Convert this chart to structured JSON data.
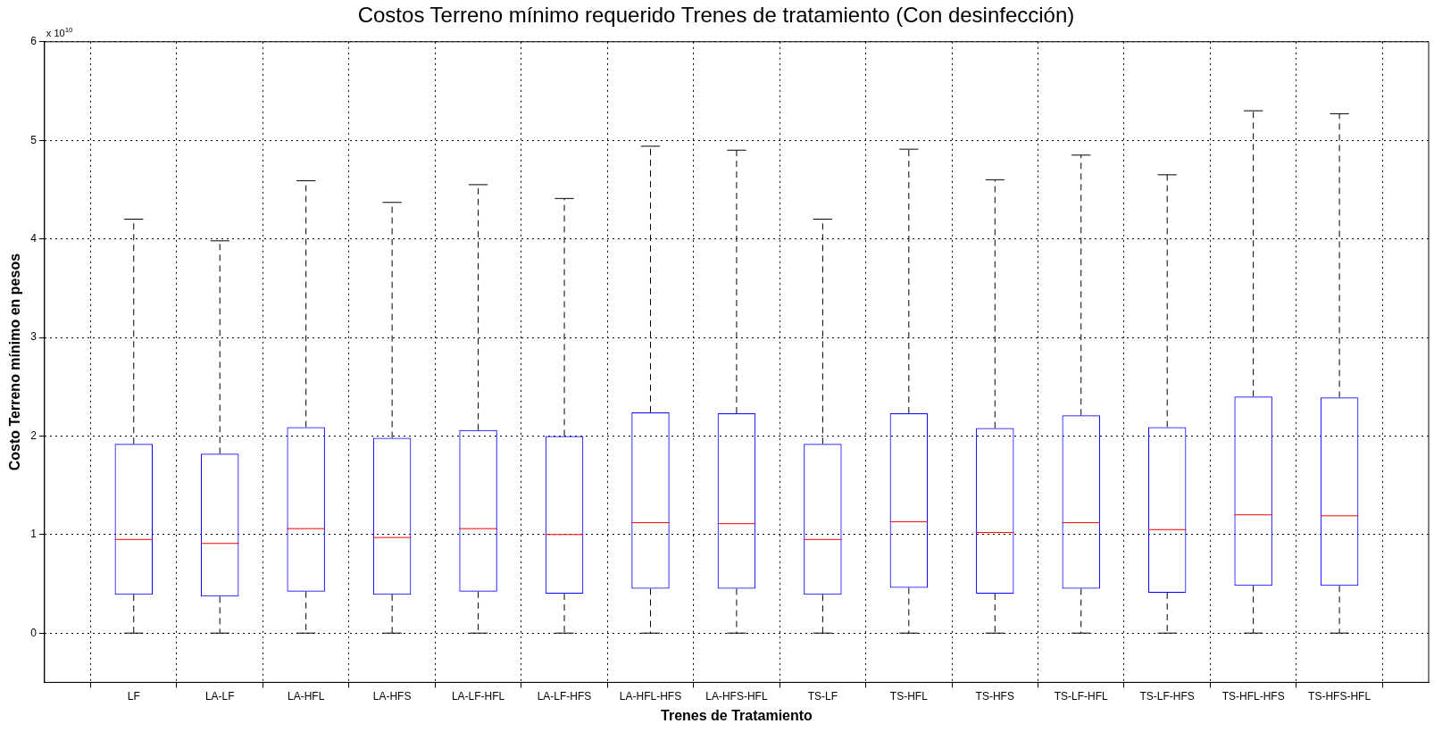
{
  "chart_data": {
    "type": "box",
    "title": "Costos Terreno mínimo requerido Trenes de tratamiento (Con desinfección)",
    "xlabel": "Trenes de Tratamiento",
    "ylabel": "Costo Terreno mínimo en pesos",
    "annotations": [
      "x 10$^{10}$"
    ],
    "categories": [
      "LF",
      "LA-LF",
      "LA-HFL",
      "LA-HFS",
      "LA-LF-HFL",
      "LA-LF-HFS",
      "LA-HFL-HFS",
      "LA-HFS-HFL",
      "TS-LF",
      "TS-HFL",
      "TS-HFS",
      "TS-LF-HFL",
      "TS-LF-HFS",
      "TS-HFL-HFS",
      "TS-HFS-HFL"
    ],
    "color": "#0000ff",
    "boxes": [
      {
        "low": 0,
        "q1": 0.39,
        "median": 0.95,
        "q3": 1.92,
        "high": 4.2
      },
      {
        "low": 0,
        "q1": 0.37,
        "median": 0.91,
        "q3": 1.82,
        "high": 3.98
      },
      {
        "low": 0,
        "q1": 0.42,
        "median": 1.06,
        "q3": 2.09,
        "high": 4.59
      },
      {
        "low": 0,
        "q1": 0.39,
        "median": 0.97,
        "q3": 1.98,
        "high": 4.37
      },
      {
        "low": 0,
        "q1": 0.42,
        "median": 1.06,
        "q3": 2.06,
        "high": 4.55
      },
      {
        "low": 0,
        "q1": 0.4,
        "median": 1.0,
        "q3": 2.0,
        "high": 4.41
      },
      {
        "low": 0,
        "q1": 0.45,
        "median": 1.12,
        "q3": 2.24,
        "high": 4.94
      },
      {
        "low": 0,
        "q1": 0.45,
        "median": 1.11,
        "q3": 2.23,
        "high": 4.9
      },
      {
        "low": 0,
        "q1": 0.39,
        "median": 0.95,
        "q3": 1.92,
        "high": 4.2
      },
      {
        "low": 0,
        "q1": 0.46,
        "median": 1.13,
        "q3": 2.23,
        "high": 4.91
      },
      {
        "low": 0,
        "q1": 0.4,
        "median": 1.02,
        "q3": 2.08,
        "high": 4.6
      },
      {
        "low": 0,
        "q1": 0.45,
        "median": 1.12,
        "q3": 2.21,
        "high": 4.85
      },
      {
        "low": 0,
        "q1": 0.41,
        "median": 1.05,
        "q3": 2.09,
        "high": 4.65
      },
      {
        "low": 0,
        "q1": 0.48,
        "median": 1.2,
        "q3": 2.4,
        "high": 5.3
      },
      {
        "low": 0,
        "q1": 0.48,
        "median": 1.19,
        "q3": 2.39,
        "high": 5.27
      }
    ],
    "ylim": [
      -0.5,
      6
    ],
    "yticks": [
      0,
      1,
      2,
      3,
      4,
      5,
      6
    ],
    "grid": true
  }
}
